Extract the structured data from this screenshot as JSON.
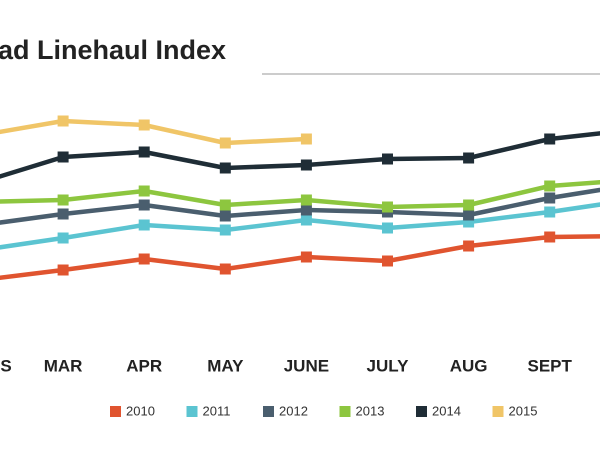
{
  "chart_data": {
    "type": "line",
    "title": "ad Linehaul Index",
    "categories": [
      "S",
      "MAR",
      "APR",
      "MAY",
      "JUNE",
      "JULY",
      "AUG",
      "SEPT",
      null
    ],
    "ylim": [
      0,
      250
    ],
    "series": [
      {
        "name": "2010",
        "color": "#e0542f",
        "values": [
          50,
          60,
          71,
          61,
          73,
          69,
          84,
          93,
          94
        ]
      },
      {
        "name": "2011",
        "color": "#5bc4d1",
        "values": [
          80,
          92,
          105,
          100,
          110,
          102,
          108,
          118,
          130
        ]
      },
      {
        "name": "2012",
        "color": "#4a5e6e",
        "values": [
          105,
          116,
          125,
          114,
          120,
          118,
          115,
          132,
          145
        ]
      },
      {
        "name": "2013",
        "color": "#8dc63f",
        "values": [
          128,
          130,
          139,
          125,
          130,
          123,
          125,
          144,
          150
        ]
      },
      {
        "name": "2014",
        "color": "#1f2d36",
        "values": [
          148,
          173,
          178,
          162,
          165,
          171,
          172,
          191,
          200
        ]
      },
      {
        "name": "2015",
        "color": "#f0c567",
        "values": [
          195,
          209,
          205,
          187,
          191,
          null,
          null,
          null,
          null
        ]
      }
    ]
  }
}
